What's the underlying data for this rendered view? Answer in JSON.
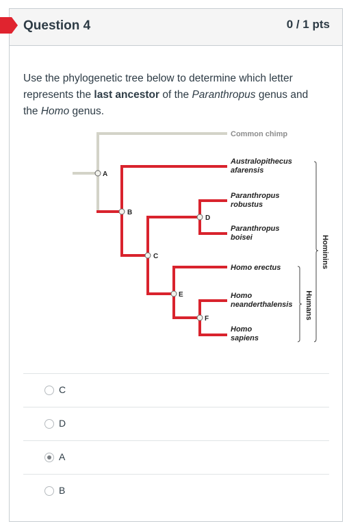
{
  "question": {
    "title": "Question 4",
    "points": "0 / 1 pts",
    "text_parts": {
      "p1": "Use the phylogenetic tree below to determine which letter represents the ",
      "bold": "last ancestor",
      "p2": " of the ",
      "italic1": "Paranthropus",
      "p3": " genus and the ",
      "italic2": "Homo",
      "p4": " genus."
    }
  },
  "tree": {
    "taxa": {
      "chimp": "Common chimp",
      "afarensis_1": "Australopithecus",
      "afarensis_2": "afarensis",
      "robustus_1": "Paranthropus",
      "robustus_2": "robustus",
      "boisei_1": "Paranthropus",
      "boisei_2": "boisei",
      "erectus": "Homo erectus",
      "neander_1": "Homo",
      "neander_2": "neanderthalensis",
      "sapiens_1": "Homo",
      "sapiens_2": "sapiens"
    },
    "nodes": {
      "a": "A",
      "b": "B",
      "c": "C",
      "d": "D",
      "e": "E",
      "f": "F"
    },
    "groups": {
      "humans": "Humans",
      "hominins": "Hominins"
    },
    "colors": {
      "lineage": "#d9232d",
      "outgroup": "#d3d3c8"
    }
  },
  "answers": [
    {
      "label": "C",
      "selected": false
    },
    {
      "label": "D",
      "selected": false
    },
    {
      "label": "A",
      "selected": true
    },
    {
      "label": "B",
      "selected": false
    }
  ]
}
